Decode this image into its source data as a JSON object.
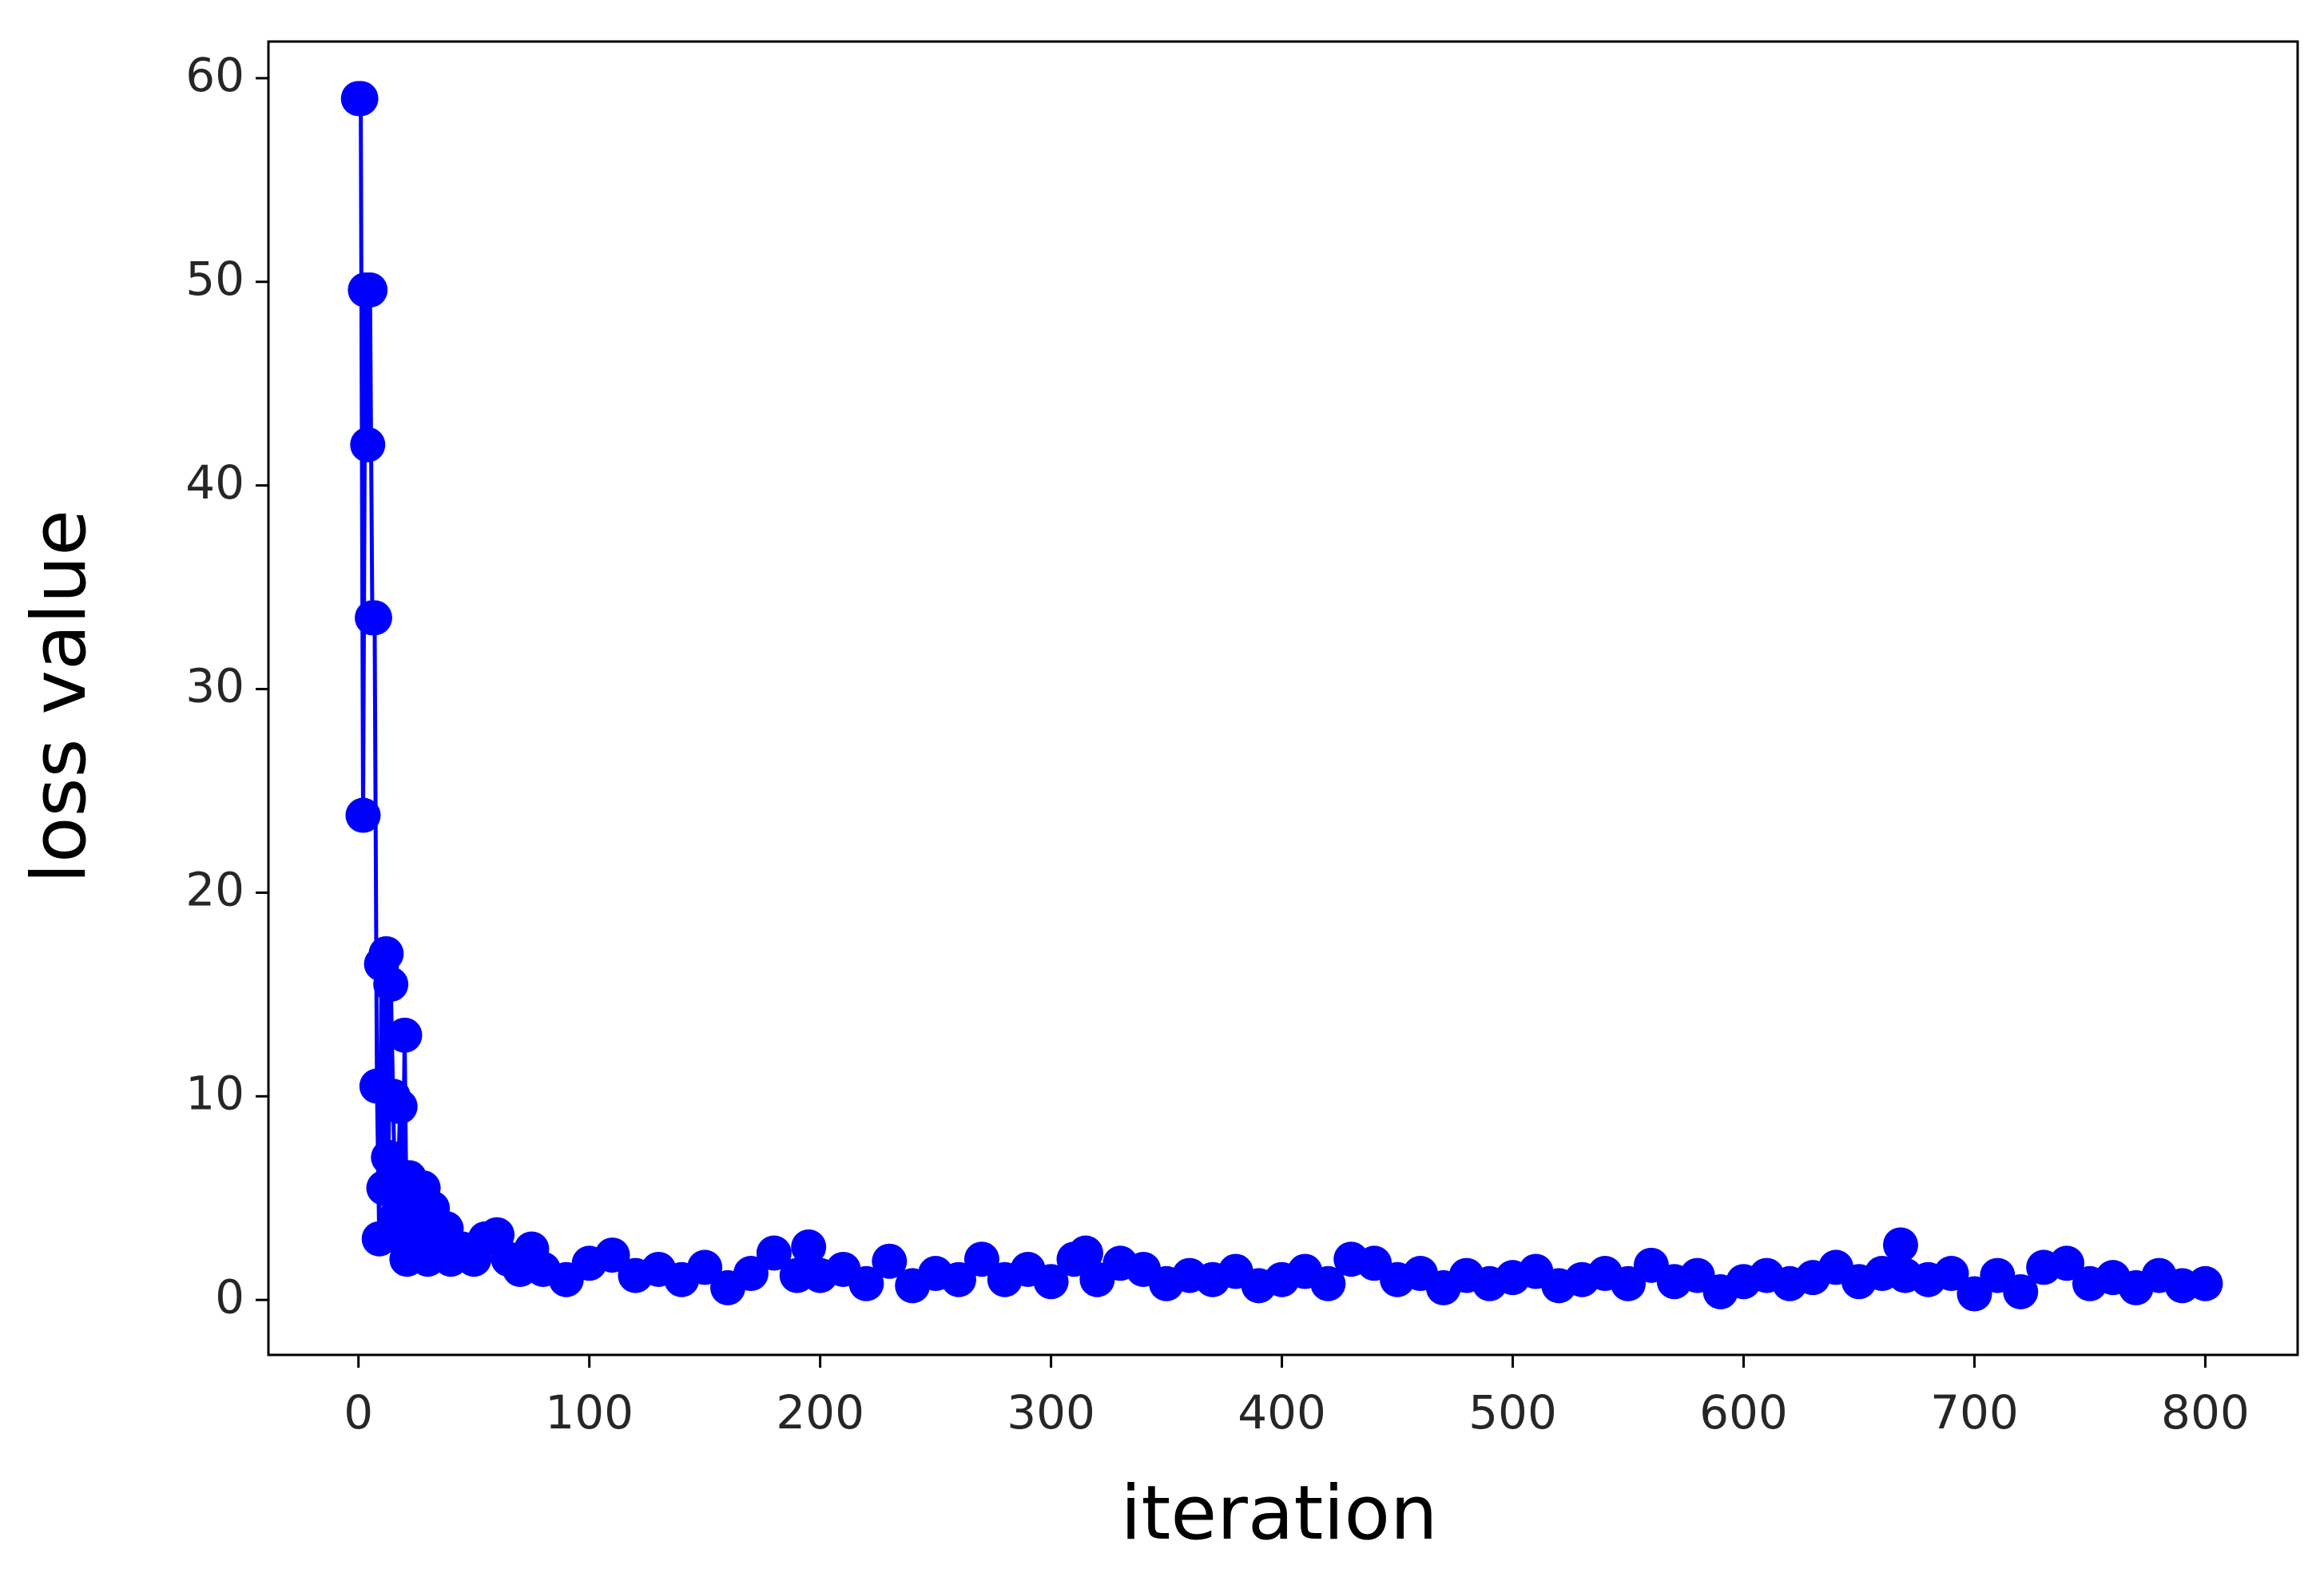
{
  "chart_data": {
    "type": "line",
    "x_label": "iteration",
    "y_label": "loss value",
    "color": "#0000ff",
    "marker": "circle",
    "grid": false,
    "xlim": [
      -39,
      840
    ],
    "ylim": [
      -2.7,
      61.8
    ],
    "xticks": [
      0,
      100,
      200,
      300,
      400,
      500,
      600,
      700,
      800
    ],
    "yticks": [
      0,
      10,
      20,
      30,
      40,
      50,
      60
    ],
    "x": [
      0,
      1,
      2,
      3,
      4,
      5,
      6,
      7,
      8,
      9,
      10,
      11,
      12,
      13,
      14,
      15,
      16,
      17,
      18,
      19,
      20,
      21,
      22,
      24,
      26,
      28,
      30,
      32,
      35,
      38,
      40,
      45,
      50,
      55,
      60,
      65,
      70,
      75,
      80,
      90,
      100,
      110,
      120,
      130,
      140,
      150,
      160,
      170,
      180,
      190,
      195,
      200,
      210,
      220,
      230,
      240,
      250,
      260,
      270,
      280,
      290,
      300,
      310,
      315,
      320,
      330,
      340,
      350,
      360,
      370,
      380,
      390,
      400,
      410,
      420,
      430,
      440,
      450,
      460,
      470,
      480,
      490,
      500,
      510,
      520,
      530,
      540,
      550,
      560,
      570,
      580,
      590,
      600,
      610,
      620,
      630,
      640,
      650,
      660,
      668,
      670,
      680,
      690,
      700,
      710,
      720,
      730,
      740,
      750,
      760,
      770,
      780,
      790,
      800
    ],
    "y": [
      59,
      59,
      23.8,
      49.6,
      42,
      49.6,
      33.5,
      33.5,
      10.5,
      3,
      16.5,
      5.5,
      17,
      7,
      15.5,
      10,
      4,
      5,
      9.5,
      3,
      13,
      2,
      6,
      4,
      3,
      5.5,
      2,
      4.5,
      2.5,
      3.5,
      2,
      2.5,
      2,
      3,
      3.2,
      2,
      1.5,
      2.5,
      1.5,
      1,
      1.8,
      2.2,
      1.2,
      1.5,
      1,
      1.6,
      0.6,
      1.3,
      2.3,
      1.2,
      2.6,
      1.2,
      1.5,
      0.8,
      1.9,
      0.7,
      1.3,
      1,
      2,
      1,
      1.5,
      0.9,
      2,
      2.3,
      1,
      1.8,
      1.5,
      0.8,
      1.2,
      1,
      1.4,
      0.7,
      1,
      1.4,
      0.8,
      2,
      1.8,
      1,
      1.3,
      0.6,
      1.2,
      0.8,
      1.1,
      1.4,
      0.7,
      1,
      1.3,
      0.8,
      1.7,
      0.9,
      1.2,
      0.4,
      0.9,
      1.2,
      0.8,
      1.1,
      1.6,
      0.9,
      1.3,
      2.7,
      1.2,
      1,
      1.3,
      0.3,
      1.2,
      0.4,
      1.6,
      1.8,
      0.8,
      1.1,
      0.6,
      1.2,
      0.7,
      0.8
    ]
  }
}
